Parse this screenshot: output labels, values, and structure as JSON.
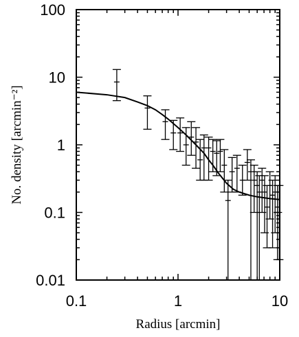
{
  "chart_data": {
    "type": "scatter",
    "title": "",
    "xlabel": "Radius [arcmin]",
    "ylabel": "No. density [arcmin⁻²]",
    "x_scale": "log",
    "y_scale": "log",
    "xlim": [
      0.1,
      10
    ],
    "ylim": [
      0.01,
      100
    ],
    "x_ticks": [
      "0.1",
      "1",
      "10"
    ],
    "y_ticks": [
      "0.01",
      "0.1",
      "1",
      "10",
      "100"
    ],
    "grid": false,
    "legend": "none",
    "series": [
      {
        "kind": "errorbar",
        "points": [
          {
            "x": 0.25,
            "y": 8.5,
            "ylo": 4.5,
            "yhi": 13
          },
          {
            "x": 0.5,
            "y": 3.5,
            "ylo": 1.7,
            "yhi": 5.3
          },
          {
            "x": 0.75,
            "y": 2.2,
            "ylo": 1.2,
            "yhi": 3.3
          },
          {
            "x": 0.9,
            "y": 1.5,
            "ylo": 0.85,
            "yhi": 2.3
          },
          {
            "x": 1.05,
            "y": 1.5,
            "ylo": 0.8,
            "yhi": 2.5
          },
          {
            "x": 1.2,
            "y": 1.0,
            "ylo": 0.5,
            "yhi": 1.8
          },
          {
            "x": 1.35,
            "y": 1.3,
            "ylo": 0.7,
            "yhi": 2.2
          },
          {
            "x": 1.5,
            "y": 1.1,
            "ylo": 0.45,
            "yhi": 1.8
          },
          {
            "x": 1.65,
            "y": 0.6,
            "ylo": 0.3,
            "yhi": 1.2
          },
          {
            "x": 1.8,
            "y": 0.9,
            "ylo": 0.3,
            "yhi": 1.4
          },
          {
            "x": 2.0,
            "y": 0.9,
            "ylo": 0.3,
            "yhi": 1.3
          },
          {
            "x": 2.2,
            "y": 0.8,
            "ylo": 0.4,
            "yhi": 1.2
          },
          {
            "x": 2.4,
            "y": 0.75,
            "ylo": 0.35,
            "yhi": 1.15
          },
          {
            "x": 2.6,
            "y": 0.8,
            "ylo": 0.4,
            "yhi": 1.2
          },
          {
            "x": 2.85,
            "y": 0.5,
            "ylo": 0.2,
            "yhi": 0.85
          },
          {
            "x": 3.1,
            "y": 0.15,
            "ylo": 0.01,
            "yhi": 0.3
          },
          {
            "x": 3.4,
            "y": 0.4,
            "ylo": 0.2,
            "yhi": 0.65
          },
          {
            "x": 3.8,
            "y": 0.45,
            "ylo": 0.2,
            "yhi": 0.7
          },
          {
            "x": 4.3,
            "y": 0.3,
            "ylo": 0.18,
            "yhi": 0.5
          },
          {
            "x": 4.8,
            "y": 0.55,
            "ylo": 0.3,
            "yhi": 0.85
          },
          {
            "x": 5.2,
            "y": 0.4,
            "ylo": 0.01,
            "yhi": 0.6
          },
          {
            "x": 5.6,
            "y": 0.3,
            "ylo": 0.1,
            "yhi": 0.5
          },
          {
            "x": 6.0,
            "y": 0.25,
            "ylo": 0.01,
            "yhi": 0.4
          },
          {
            "x": 6.3,
            "y": 0.2,
            "ylo": 0.01,
            "yhi": 0.35
          },
          {
            "x": 6.7,
            "y": 0.3,
            "ylo": 0.1,
            "yhi": 0.45
          },
          {
            "x": 7.1,
            "y": 0.2,
            "ylo": 0.05,
            "yhi": 0.35
          },
          {
            "x": 7.5,
            "y": 0.12,
            "ylo": 0.03,
            "yhi": 0.25
          },
          {
            "x": 8.0,
            "y": 0.25,
            "ylo": 0.08,
            "yhi": 0.4
          },
          {
            "x": 8.5,
            "y": 0.18,
            "ylo": 0.03,
            "yhi": 0.3
          },
          {
            "x": 9.0,
            "y": 0.2,
            "ylo": 0.05,
            "yhi": 0.35
          },
          {
            "x": 9.5,
            "y": 0.12,
            "ylo": 0.02,
            "yhi": 0.25
          },
          {
            "x": 9.9,
            "y": 0.1,
            "ylo": 0.02,
            "yhi": 0.25
          }
        ]
      },
      {
        "kind": "line",
        "x": [
          0.1,
          0.2,
          0.3,
          0.4,
          0.5,
          0.6,
          0.7,
          0.8,
          1.0,
          1.2,
          1.5,
          1.8,
          2.0,
          2.2,
          2.5,
          3.0,
          3.5,
          4.0,
          5.0,
          6.0,
          7.0,
          8.0,
          10.0
        ],
        "y": [
          6.0,
          5.5,
          5.0,
          4.3,
          3.8,
          3.3,
          2.8,
          2.4,
          1.8,
          1.4,
          1.0,
          0.75,
          0.6,
          0.5,
          0.38,
          0.27,
          0.22,
          0.2,
          0.18,
          0.17,
          0.165,
          0.16,
          0.155
        ]
      }
    ]
  }
}
